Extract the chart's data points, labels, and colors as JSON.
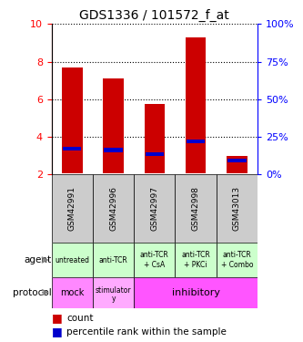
{
  "title": "GDS1336 / 101572_f_at",
  "samples": [
    "GSM42991",
    "GSM42996",
    "GSM42997",
    "GSM42998",
    "GSM43013"
  ],
  "bar_top": [
    7.7,
    7.1,
    5.75,
    9.3,
    3.0
  ],
  "bar_bottom": [
    2.05,
    2.05,
    2.05,
    2.05,
    2.05
  ],
  "percentile_values": [
    3.35,
    3.3,
    3.1,
    3.75,
    2.75
  ],
  "ylim": [
    2,
    10
  ],
  "yticks_left": [
    2,
    4,
    6,
    8,
    10
  ],
  "yticks_right": [
    0,
    25,
    50,
    75,
    100
  ],
  "bar_color": "#cc0000",
  "percentile_color": "#0000cc",
  "agent_labels": [
    "untreated",
    "anti-TCR",
    "anti-TCR\n+ CsA",
    "anti-TCR\n+ PKCi",
    "anti-TCR\n+ Combo"
  ],
  "agent_bg": "#ccffcc",
  "protocol_mock_bg": "#ff88ff",
  "protocol_stim_bg": "#ffaaff",
  "protocol_inhib_bg": "#ff55ff",
  "gsm_bg": "#cccccc",
  "bar_width": 0.5,
  "legend_red": "count",
  "legend_blue": "percentile rank within the sample"
}
